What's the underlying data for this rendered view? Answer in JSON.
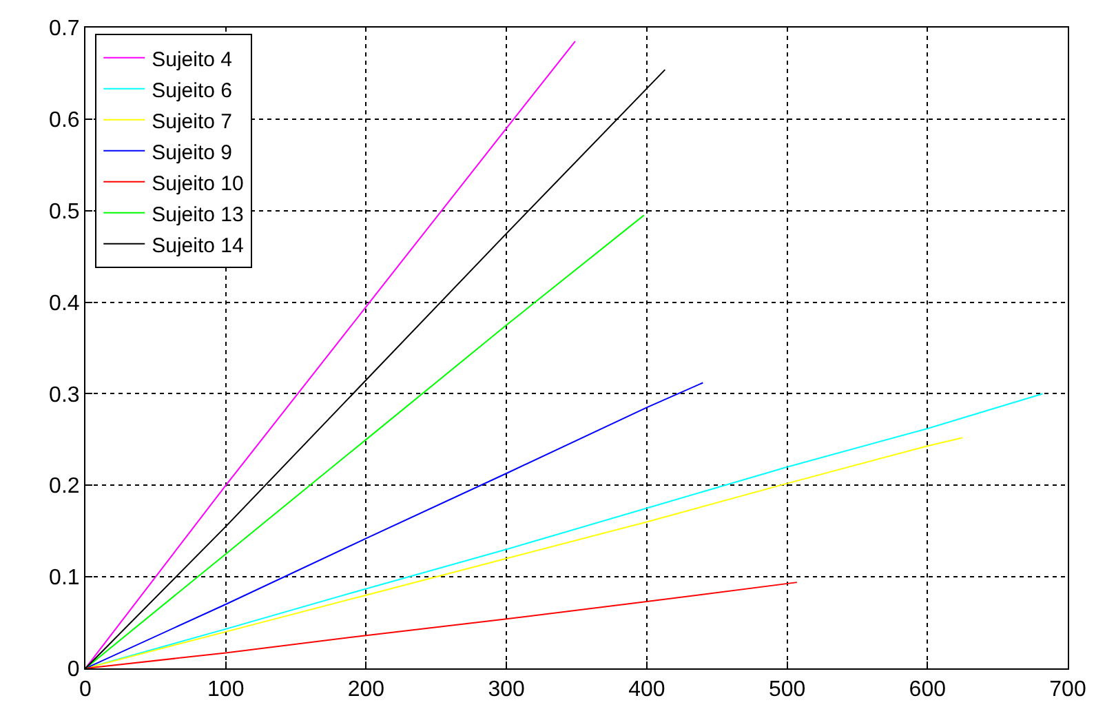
{
  "chart_data": {
    "type": "line",
    "xlim": [
      0,
      700
    ],
    "xticks": [
      0,
      100,
      200,
      300,
      400,
      500,
      600,
      700
    ],
    "ylim": [
      0,
      0.7
    ],
    "yticks": [
      0,
      0.1,
      0.2,
      0.3,
      0.4,
      0.5,
      0.6,
      0.7
    ],
    "grid": true,
    "legend": "top left",
    "line_style": "solid",
    "series": [
      {
        "name": "Sujeito 4",
        "color": "#ff00ff",
        "x": [
          0,
          100,
          200,
          300,
          349
        ],
        "values": [
          0,
          0.2,
          0.395,
          0.59,
          0.685
        ]
      },
      {
        "name": "Sujeito 6",
        "color": "#00ffff",
        "x": [
          0,
          100,
          200,
          300,
          400,
          500,
          600,
          682
        ],
        "values": [
          0,
          0.043,
          0.087,
          0.13,
          0.175,
          0.22,
          0.262,
          0.3
        ]
      },
      {
        "name": "Sujeito 7",
        "color": "#ffff00",
        "x": [
          0,
          100,
          200,
          300,
          400,
          500,
          600,
          625
        ],
        "values": [
          0,
          0.04,
          0.08,
          0.12,
          0.16,
          0.202,
          0.243,
          0.252
        ]
      },
      {
        "name": "Sujeito 9",
        "color": "#0000ff",
        "x": [
          0,
          100,
          200,
          300,
          400,
          440
        ],
        "values": [
          0,
          0.07,
          0.142,
          0.213,
          0.285,
          0.312
        ]
      },
      {
        "name": "Sujeito 10",
        "color": "#ff0000",
        "x": [
          0,
          100,
          200,
          300,
          400,
          507
        ],
        "values": [
          0,
          0.017,
          0.036,
          0.054,
          0.073,
          0.094
        ]
      },
      {
        "name": "Sujeito 13",
        "color": "#00ff00",
        "x": [
          0,
          100,
          200,
          300,
          398
        ],
        "values": [
          0,
          0.125,
          0.25,
          0.375,
          0.495
        ]
      },
      {
        "name": "Sujeito 14",
        "color": "#000000",
        "x": [
          0,
          100,
          200,
          300,
          413
        ],
        "values": [
          0,
          0.155,
          0.315,
          0.475,
          0.654
        ]
      }
    ]
  }
}
